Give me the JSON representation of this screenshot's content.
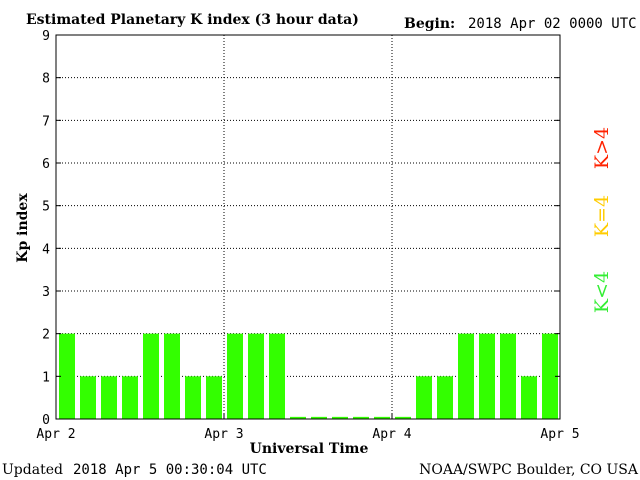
{
  "header": {
    "title": "Estimated Planetary K index (3 hour data)",
    "begin_label": "Begin:",
    "begin_value": "2018 Apr 02 0000 UTC"
  },
  "footer": {
    "updated_label": "Updated",
    "updated_value": "2018 Apr  5 00:30:04 UTC",
    "credit": "NOAA/SWPC Boulder, CO USA"
  },
  "legend": {
    "high": {
      "label": "K>4",
      "color": "#ff2200"
    },
    "mid": {
      "label": "K=4",
      "color": "#ffcc00"
    },
    "low": {
      "label": "K<4",
      "color": "#33ee33"
    }
  },
  "chart_data": {
    "type": "bar",
    "title": "Estimated Planetary K index (3 hour data)",
    "xlabel": "Universal Time",
    "ylabel": "Kp index",
    "ylim": [
      0,
      9
    ],
    "yticks": [
      "0",
      "1",
      "2",
      "3",
      "4",
      "5",
      "6",
      "7",
      "8",
      "9"
    ],
    "xticks": [
      "Apr 2",
      "Apr 3",
      "Apr 4",
      "Apr 5"
    ],
    "grid": true,
    "bar_color": "#33ff00",
    "categories": [
      "Apr 2 00",
      "Apr 2 03",
      "Apr 2 06",
      "Apr 2 09",
      "Apr 2 12",
      "Apr 2 15",
      "Apr 2 18",
      "Apr 2 21",
      "Apr 3 00",
      "Apr 3 03",
      "Apr 3 06",
      "Apr 3 09",
      "Apr 3 12",
      "Apr 3 15",
      "Apr 3 18",
      "Apr 3 21",
      "Apr 4 00",
      "Apr 4 03",
      "Apr 4 06",
      "Apr 4 09",
      "Apr 4 12",
      "Apr 4 15",
      "Apr 4 18",
      "Apr 4 21"
    ],
    "values": [
      2,
      1,
      1,
      1,
      2,
      2,
      1,
      1,
      2,
      2,
      2,
      0.05,
      0.05,
      0.05,
      0.05,
      0.05,
      0.05,
      1,
      1,
      2,
      2,
      2,
      1,
      2
    ]
  }
}
